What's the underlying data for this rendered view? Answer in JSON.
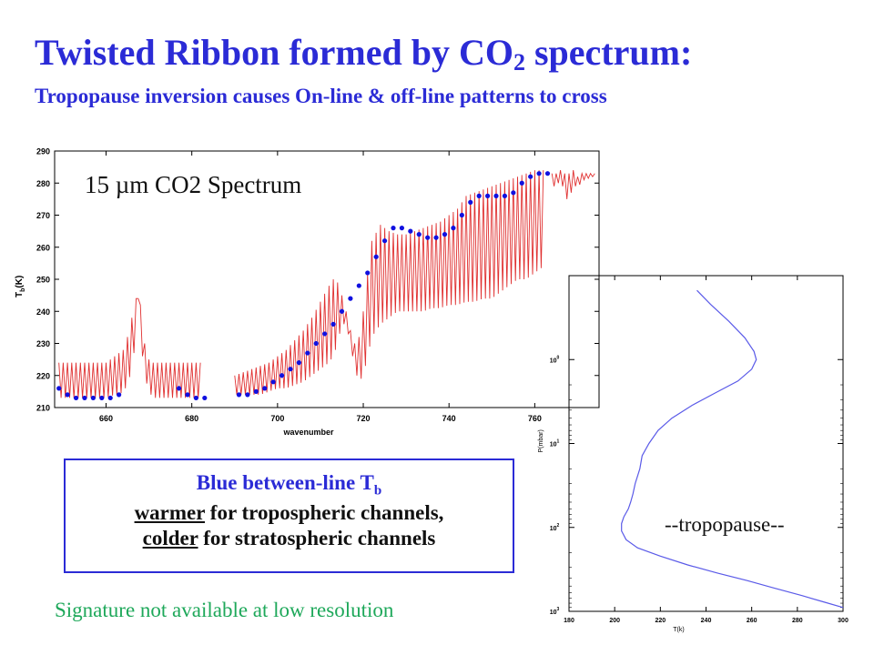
{
  "slide": {
    "title_main": "Twisted Ribbon formed by CO",
    "title_sub": "2",
    "title_end": " spectrum:",
    "subtitle": "Tropopause inversion causes On-line & off-line patterns to cross",
    "box_line1_main": "Blue between-line T",
    "box_line1_sub": "b",
    "box_line2_u": "warmer",
    "box_line2_rest": " for tropospheric channels,",
    "box_line3_u": "colder",
    "box_line3_rest": " for stratospheric channels",
    "note": "Signature not available at low resolution",
    "spectrum_label": "15 µm CO2 Spectrum",
    "tropopause_label": "--tropopause--"
  },
  "colors": {
    "title": "#2b2bd6",
    "note": "#1ea85a",
    "spectrum_line": "#e03030",
    "blue_dots": "#1010e0",
    "profile_line": "#5a5ae8"
  },
  "chart_data": [
    {
      "type": "line",
      "xlabel": "wavenumber",
      "ylabel": "T",
      "ylabel_sub": "b",
      "ylabel_unit": "(K)",
      "xlim": [
        648,
        775
      ],
      "ylim": [
        210,
        290
      ],
      "xticks": [
        660,
        680,
        700,
        720,
        740,
        760
      ],
      "yticks": [
        210,
        220,
        230,
        240,
        250,
        260,
        270,
        280,
        290
      ],
      "series": [
        {
          "kind": "spectrum_envelope",
          "segments": [
            {
              "x": [
                649,
                650,
                652,
                654,
                656,
                658,
                660,
                662,
                663,
                664,
                665,
                666,
                667,
                667.5,
                668,
                668.5,
                669,
                670,
                671,
                672,
                673,
                674,
                676,
                678,
                680,
                682
              ],
              "hi": [
                224,
                224,
                224,
                224,
                224,
                224,
                224,
                226,
                227,
                228,
                232,
                238,
                244,
                245,
                242,
                236,
                230,
                225,
                224,
                224,
                224,
                224,
                224,
                224,
                224,
                224
              ],
              "lo": [
                213,
                213,
                213,
                213,
                213,
                213,
                213,
                214,
                214,
                215,
                217,
                222,
                232,
                244,
                236,
                226,
                220,
                215,
                213,
                213,
                213,
                213,
                213,
                213,
                213,
                213
              ]
            },
            {
              "x": [
                690,
                692,
                694,
                696,
                698,
                700,
                702,
                704,
                706,
                708,
                710,
                712,
                713,
                714,
                715,
                716,
                717,
                718,
                719,
                720,
                721,
                722,
                724,
                726,
                728,
                730,
                732,
                734,
                736,
                738,
                740,
                742,
                744,
                746,
                748,
                750,
                752,
                754,
                756,
                758,
                760,
                762
              ],
              "hi": [
                220,
                221,
                222,
                223,
                224,
                226,
                228,
                231,
                234,
                238,
                243,
                248,
                250,
                249,
                245,
                240,
                234,
                230,
                232,
                240,
                252,
                262,
                267,
                265,
                264,
                264,
                265,
                266,
                267,
                268,
                270,
                272,
                276,
                277,
                278,
                279,
                280,
                281,
                282,
                283,
                284,
                284
              ],
              "lo": [
                214,
                214,
                214,
                214,
                215,
                216,
                216,
                217,
                218,
                220,
                222,
                224,
                226,
                230,
                236,
                236,
                230,
                222,
                218,
                220,
                226,
                232,
                236,
                238,
                240,
                240,
                240,
                240,
                241,
                241,
                242,
                242,
                243,
                243,
                244,
                244,
                246,
                248,
                250,
                250,
                252,
                254
              ]
            },
            {
              "x": [
                764,
                765,
                766,
                767,
                768,
                769,
                770,
                771,
                772,
                773,
                774
              ],
              "hi": [
                283,
                283,
                284,
                283,
                283,
                284,
                282,
                283,
                283,
                283,
                283
              ],
              "lo": [
                280,
                278,
                282,
                276,
                274,
                280,
                278,
                281,
                281,
                282,
                282
              ]
            }
          ]
        },
        {
          "kind": "between_line_points",
          "x": [
            649,
            651,
            653,
            655,
            657,
            659,
            661,
            663,
            677,
            679,
            681,
            683,
            691,
            693,
            695,
            697,
            699,
            701,
            703,
            705,
            707,
            709,
            711,
            713,
            715,
            717,
            719,
            721,
            723,
            725,
            727,
            729,
            731,
            733,
            735,
            737,
            739,
            741,
            743,
            745,
            747,
            749,
            751,
            753,
            755,
            757,
            759,
            761,
            763
          ],
          "y": [
            216,
            214,
            213,
            213,
            213,
            213,
            213,
            214,
            216,
            214,
            213,
            213,
            214,
            214,
            215,
            216,
            218,
            220,
            222,
            224,
            227,
            230,
            233,
            236,
            240,
            244,
            248,
            252,
            257,
            262,
            266,
            266,
            265,
            264,
            263,
            263,
            264,
            266,
            270,
            274,
            276,
            276,
            276,
            276,
            277,
            280,
            282,
            283,
            283
          ]
        }
      ]
    },
    {
      "type": "line",
      "xlabel": "T(k)",
      "ylabel": "P(mbar)",
      "ylog": true,
      "xlim": [
        180,
        300
      ],
      "ylim": [
        0.1,
        1000
      ],
      "xticks": [
        180,
        200,
        220,
        240,
        260,
        280,
        300
      ],
      "yticks": [
        1,
        10,
        100,
        1000
      ],
      "ytick_labels": [
        {
          "base": "10",
          "exp": "0"
        },
        {
          "base": "10",
          "exp": "1"
        },
        {
          "base": "10",
          "exp": "2"
        },
        {
          "base": "10",
          "exp": "3"
        }
      ],
      "series": [
        {
          "kind": "temperature_profile",
          "x": [
            236,
            242,
            250,
            257,
            261,
            262,
            260,
            254,
            244,
            234,
            225,
            219,
            215,
            212,
            211,
            209,
            208,
            207,
            206,
            204,
            203,
            203,
            205,
            210,
            220,
            232,
            245,
            258,
            270,
            282,
            292,
            300
          ],
          "y": [
            0.15,
            0.22,
            0.35,
            0.55,
            0.8,
            1.0,
            1.3,
            1.8,
            2.5,
            3.5,
            5.0,
            7.0,
            10,
            14,
            20,
            30,
            40,
            50,
            60,
            75,
            90,
            110,
            140,
            175,
            220,
            280,
            350,
            430,
            530,
            650,
            780,
            900
          ]
        }
      ]
    }
  ]
}
